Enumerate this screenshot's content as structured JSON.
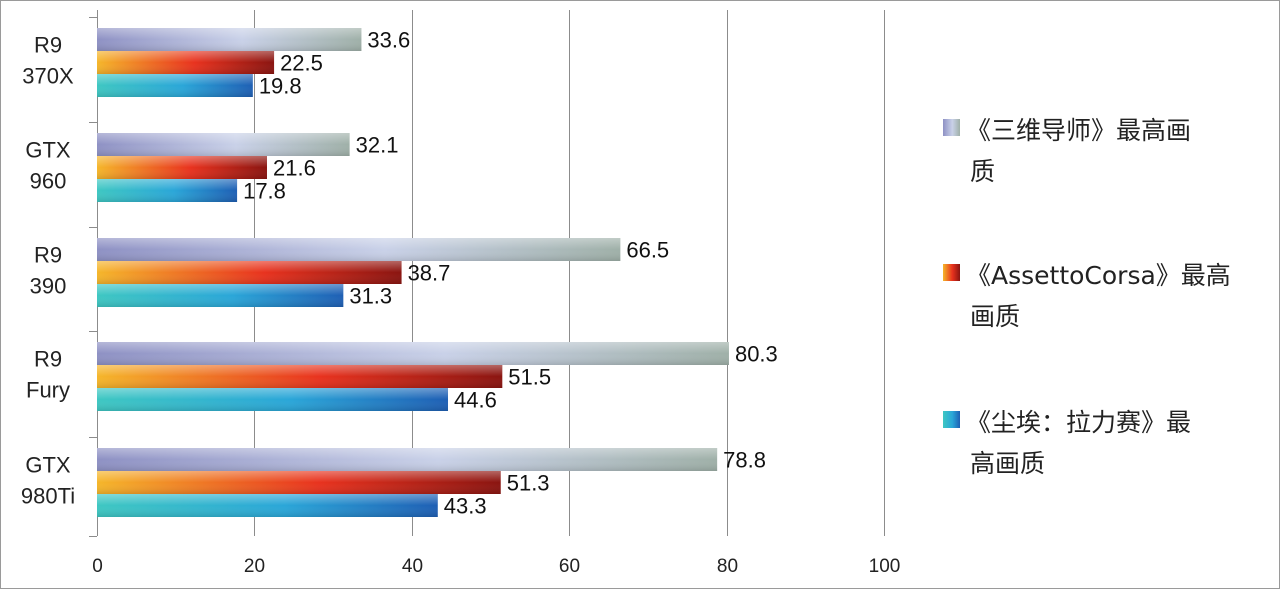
{
  "chart_data": {
    "type": "bar",
    "orientation": "horizontal",
    "categories": [
      [
        "R9",
        "370X"
      ],
      [
        "GTX",
        "960"
      ],
      [
        "R9",
        "390"
      ],
      [
        "R9",
        "Fury"
      ],
      [
        "GTX",
        "980Ti"
      ]
    ],
    "series": [
      {
        "name": "《三维导师》最高画质",
        "legend_lines": [
          "《三维导师》最高画",
          "质"
        ],
        "values": [
          33.6,
          32.1,
          66.5,
          80.3,
          78.8
        ],
        "colors": [
          "#8e91c4",
          "#c9d1e8",
          "#9fb0a8"
        ]
      },
      {
        "name": "《AssettoCorsa》最高画质",
        "legend_lines": [
          "《AssettoCorsa》最高",
          "画质"
        ],
        "values": [
          22.5,
          21.6,
          38.7,
          51.5,
          51.3
        ],
        "colors": [
          "#f5b62a",
          "#e8321e",
          "#8a1410"
        ]
      },
      {
        "name": "《尘埃：拉力赛》最高画质",
        "legend_lines": [
          "《尘埃：拉力赛》最",
          "高画质"
        ],
        "values": [
          19.8,
          17.8,
          31.3,
          44.6,
          43.3
        ],
        "colors": [
          "#3ec7c2",
          "#2aa6d8",
          "#1e5fb4"
        ]
      }
    ],
    "xlim": [
      0,
      100
    ],
    "xticks": [
      0,
      20,
      40,
      60,
      80,
      100
    ],
    "xtick_labels": [
      "0",
      "20",
      "40",
      "60",
      "80",
      "100"
    ],
    "grid": true,
    "legend": "right",
    "title": "",
    "xlabel": "",
    "ylabel": ""
  }
}
